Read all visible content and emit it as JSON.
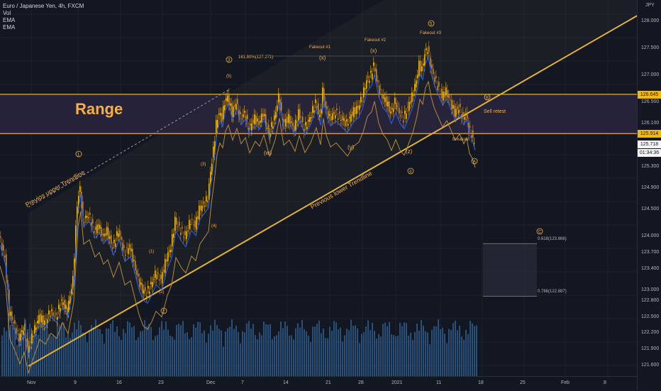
{
  "legend": {
    "symbol": "Euro / Japanese Yen, 4h, FXCM",
    "vol": "Vol",
    "ema1": "EMA",
    "ema2": "EMA"
  },
  "currency": "JPY",
  "colors": {
    "background": "#131722",
    "up": "#f0b90b",
    "down": "#b5894a",
    "ema_fast": "#2962ff",
    "ema_slow": "#b48a3c",
    "trendline": "#e3b237",
    "range_fill": "#2a2540",
    "volume": "#2c5a8a"
  },
  "chart_data": {
    "type": "candlestick",
    "title": "Euro / Japanese Yen, 4h, FXCM",
    "ylim": [
      121.4,
      128.4
    ],
    "y_ticks": [
      "128.000",
      "127.500",
      "127.000",
      "126.500",
      "126.100",
      "125.700",
      "125.300",
      "124.900",
      "124.500",
      "124.000",
      "123.700",
      "123.400",
      "123.000",
      "122.800",
      "122.500",
      "122.200",
      "121.900",
      "121.600"
    ],
    "x_ticks": [
      "Nov",
      "9",
      "16",
      "23",
      "Dec",
      "7",
      "14",
      "21",
      "28",
      "2021",
      "11",
      "18",
      "25",
      "Feb",
      "8"
    ],
    "price_path": [
      [
        0,
        124.0
      ],
      [
        8,
        123.6
      ],
      [
        14,
        122.6
      ],
      [
        20,
        122.4
      ],
      [
        28,
        122.1
      ],
      [
        34,
        122.3
      ],
      [
        40,
        121.9
      ],
      [
        48,
        122.2
      ],
      [
        56,
        122.5
      ],
      [
        64,
        122.4
      ],
      [
        72,
        122.6
      ],
      [
        80,
        122.5
      ],
      [
        88,
        122.8
      ],
      [
        96,
        122.6
      ],
      [
        104,
        123.2
      ],
      [
        110,
        124.6
      ],
      [
        114,
        124.9
      ],
      [
        118,
        124.3
      ],
      [
        126,
        124.4
      ],
      [
        134,
        124.1
      ],
      [
        140,
        124.2
      ],
      [
        146,
        124.0
      ],
      [
        152,
        124.1
      ],
      [
        160,
        123.8
      ],
      [
        168,
        124.1
      ],
      [
        176,
        123.7
      ],
      [
        184,
        123.8
      ],
      [
        190,
        123.5
      ],
      [
        196,
        123.2
      ],
      [
        202,
        123.0
      ],
      [
        208,
        122.95
      ],
      [
        214,
        123.1
      ],
      [
        220,
        123.3
      ],
      [
        228,
        123.2
      ],
      [
        236,
        123.6
      ],
      [
        242,
        123.8
      ],
      [
        248,
        124.3
      ],
      [
        256,
        124.1
      ],
      [
        262,
        124.0
      ],
      [
        270,
        124.3
      ],
      [
        276,
        124.2
      ],
      [
        282,
        124.5
      ],
      [
        288,
        124.6
      ],
      [
        294,
        124.7
      ],
      [
        298,
        125.2
      ],
      [
        302,
        125.6
      ],
      [
        306,
        126.1
      ],
      [
        310,
        126.3
      ],
      [
        314,
        126.2
      ],
      [
        318,
        126.5
      ],
      [
        322,
        126.6
      ],
      [
        328,
        126.3
      ],
      [
        334,
        126.5
      ],
      [
        340,
        126.2
      ],
      [
        346,
        126.3
      ],
      [
        352,
        126.0
      ],
      [
        360,
        126.2
      ],
      [
        366,
        126.1
      ],
      [
        372,
        126.3
      ],
      [
        380,
        125.9
      ],
      [
        388,
        126.2
      ],
      [
        394,
        126.6
      ],
      [
        400,
        126.1
      ],
      [
        408,
        126.2
      ],
      [
        416,
        126.0
      ],
      [
        422,
        126.3
      ],
      [
        430,
        126.0
      ],
      [
        438,
        126.2
      ],
      [
        446,
        126.5
      ],
      [
        452,
        126.2
      ],
      [
        456,
        126.7
      ],
      [
        460,
        126.4
      ],
      [
        466,
        126.2
      ],
      [
        474,
        126.3
      ],
      [
        482,
        126.2
      ],
      [
        490,
        126.1
      ],
      [
        498,
        126.3
      ],
      [
        506,
        126.4
      ],
      [
        512,
        126.6
      ],
      [
        518,
        126.9
      ],
      [
        524,
        127.0
      ],
      [
        528,
        127.2
      ],
      [
        534,
        126.8
      ],
      [
        540,
        126.6
      ],
      [
        546,
        126.5
      ],
      [
        552,
        126.3
      ],
      [
        558,
        126.5
      ],
      [
        564,
        126.3
      ],
      [
        570,
        126.2
      ],
      [
        576,
        126.4
      ],
      [
        582,
        126.6
      ],
      [
        588,
        126.9
      ],
      [
        592,
        127.2
      ],
      [
        596,
        127.1
      ],
      [
        600,
        127.4
      ],
      [
        604,
        127.5
      ],
      [
        608,
        127.2
      ],
      [
        612,
        127.0
      ],
      [
        618,
        126.8
      ],
      [
        624,
        126.6
      ],
      [
        630,
        126.7
      ],
      [
        636,
        126.5
      ],
      [
        642,
        126.3
      ],
      [
        648,
        126.4
      ],
      [
        654,
        126.2
      ],
      [
        658,
        126.3
      ],
      [
        662,
        126.0
      ],
      [
        666,
        125.9
      ],
      [
        670,
        125.72
      ]
    ],
    "annotations": {
      "series_label_1": "Fakeout #1",
      "series_label_2": "Fakeout #2",
      "series_label_3": "Fakeout #3",
      "fib_level": "161.80%(127.271)",
      "x_label": "(x)",
      "w_label": "(w)",
      "y_label": "(y)",
      "z_label": "(z)",
      "breakout": "Breakout",
      "sell_retest": "Sell retest",
      "range": "Range",
      "upper_trendline": "Previos upper Trendline",
      "lower_trendline": "Previous lower Trendline",
      "fib_0618": "0.618(123.866)",
      "fib_0786": "0.786(122.887)",
      "wave_1": "1",
      "wave_2": "2",
      "wave_3": "3",
      "wave_4": "4",
      "wave_5": "5",
      "wave_A": "A",
      "wave_B": "B",
      "wave_C": "C",
      "sub_1": "(1)",
      "sub_2": "(2)",
      "sub_3": "(3)",
      "sub_4": "(4)",
      "sub_5": "(5)"
    }
  },
  "price_tags": [
    {
      "value": "126.645",
      "bg": "#f0b90b",
      "fg": "#131722"
    },
    {
      "value": "125.914",
      "bg": "#f0b90b",
      "fg": "#131722"
    },
    {
      "value": "125.718",
      "bg": "#f5f5f5",
      "fg": "#131722"
    },
    {
      "value": "01:34:36",
      "bg": "#f5f5f5",
      "fg": "#131722"
    }
  ]
}
